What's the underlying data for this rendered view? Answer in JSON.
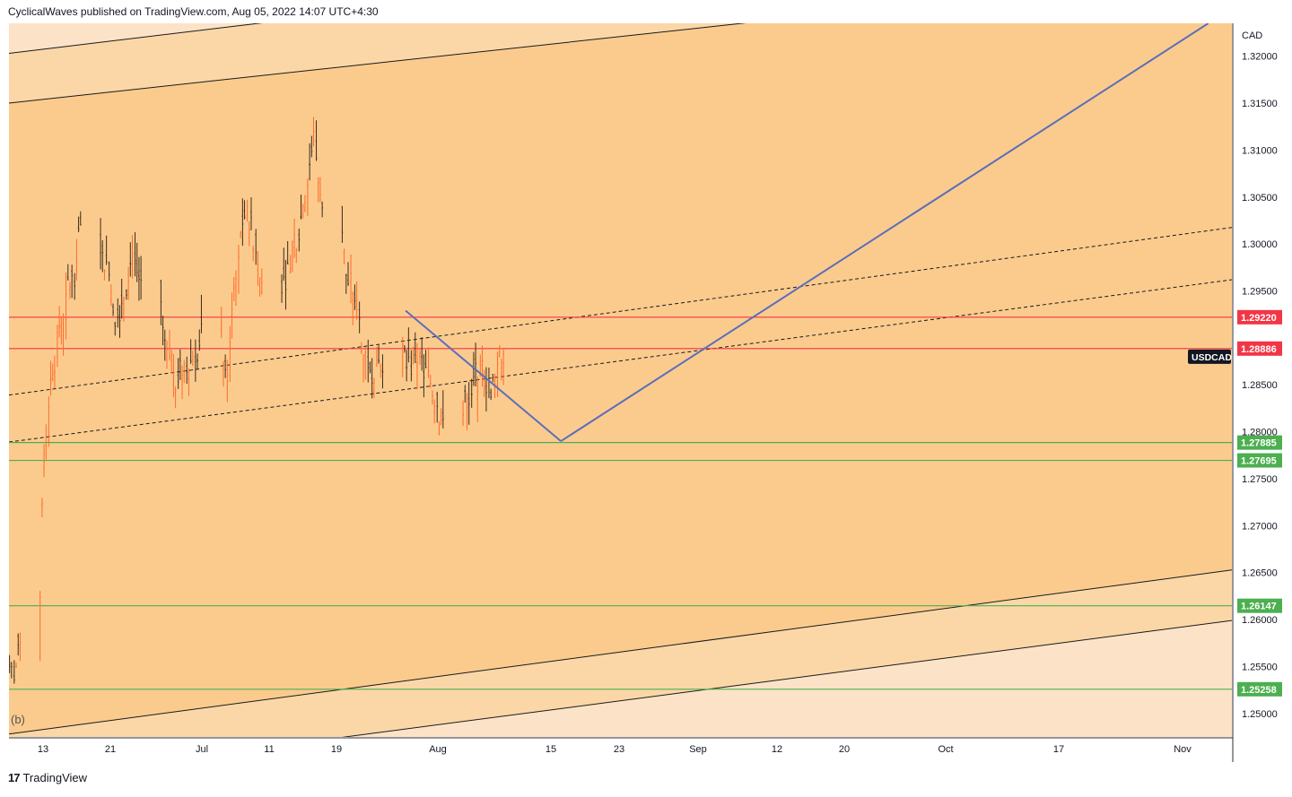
{
  "header": {
    "attribution": "CyclicalWaves published on TradingView.com, Aug 05, 2022 14:07 UTC+4:30"
  },
  "footer": {
    "brand": "TradingView",
    "logo_glyph": "17"
  },
  "chart_data": {
    "type": "candlestick",
    "symbol": "USDCAD",
    "currency": "CAD",
    "wave_label": "(b)",
    "ylim": [
      1.2475,
      1.3235
    ],
    "y_ticks": [
      "1.32000",
      "1.31500",
      "1.31000",
      "1.30500",
      "1.30000",
      "1.29500",
      "1.28500",
      "1.28000",
      "1.27500",
      "1.27000",
      "1.26500",
      "1.26000",
      "1.25500",
      "1.25000"
    ],
    "x_ticks": [
      "13",
      "21",
      "Jul",
      "11",
      "19",
      "Aug",
      "15",
      "23",
      "Sep",
      "12",
      "20",
      "Oct",
      "17",
      "Nov"
    ],
    "price_levels": [
      {
        "value": 1.2922,
        "label": "1.29220",
        "color": "#f23645"
      },
      {
        "value": 1.28886,
        "label": "1.28886",
        "color": "#f23645"
      },
      {
        "value": 1.27885,
        "label": "1.27885",
        "color": "#4caf50"
      },
      {
        "value": 1.27695,
        "label": "1.27695",
        "color": "#4caf50"
      },
      {
        "value": 1.26147,
        "label": "1.26147",
        "color": "#4caf50"
      },
      {
        "value": 1.25258,
        "label": "1.25258",
        "color": "#4caf50"
      }
    ],
    "current_price_tag": "USDCAD",
    "price_series_anchor_points": [
      [
        "Jun 09",
        1.254
      ],
      [
        "Jun 10",
        1.256
      ],
      [
        "Jun 13",
        1.279
      ],
      [
        "Jun 14",
        1.288
      ],
      [
        "Jun 15",
        1.292
      ],
      [
        "Jun 16",
        1.296
      ],
      [
        "Jun 17",
        1.301
      ],
      [
        "Jun 20",
        1.298
      ],
      [
        "Jun 21",
        1.293
      ],
      [
        "Jun 22",
        1.295
      ],
      [
        "Jun 23",
        1.299
      ],
      [
        "Jun 24",
        1.296
      ],
      [
        "Jun 27",
        1.288
      ],
      [
        "Jun 28",
        1.286
      ],
      [
        "Jun 29",
        1.287
      ],
      [
        "Jun 30",
        1.288
      ],
      [
        "Jul 01",
        1.291
      ],
      [
        "Jul 04",
        1.286
      ],
      [
        "Jul 05",
        1.296
      ],
      [
        "Jul 06",
        1.303
      ],
      [
        "Jul 07",
        1.301
      ],
      [
        "Jul 08",
        1.296
      ],
      [
        "Jul 11",
        1.297
      ],
      [
        "Jul 12",
        1.301
      ],
      [
        "Jul 13",
        1.305
      ],
      [
        "Jul 14",
        1.311
      ],
      [
        "Jul 15",
        1.304
      ],
      [
        "Jul 18",
        1.296
      ],
      [
        "Jul 19",
        1.293
      ],
      [
        "Jul 20",
        1.288
      ],
      [
        "Jul 21",
        1.287
      ],
      [
        "Jul 22",
        1.288
      ],
      [
        "Jul 25",
        1.287
      ],
      [
        "Jul 26",
        1.288
      ],
      [
        "Jul 27",
        1.286
      ],
      [
        "Jul 28",
        1.284
      ],
      [
        "Jul 29",
        1.281
      ],
      [
        "Aug 01",
        1.284
      ],
      [
        "Aug 02",
        1.286
      ],
      [
        "Aug 03",
        1.2855
      ],
      [
        "Aug 04",
        1.285
      ],
      [
        "Aug 05",
        1.288
      ]
    ],
    "trend_lines": [
      {
        "style": "solid",
        "color": "#5b6fb8",
        "points": [
          [
            "Jul 25",
            1.2929
          ],
          [
            "Aug 12",
            1.279
          ]
        ]
      },
      {
        "style": "solid",
        "color": "#5b6fb8",
        "points": [
          [
            "Aug 12",
            1.279
          ],
          [
            "Oct 26",
            1.3235
          ]
        ]
      }
    ],
    "channel_lines": [
      {
        "style": "solid",
        "points": [
          [
            "Jun 09",
            1.3203
          ],
          [
            "Sep 14",
            1.331
          ]
        ]
      },
      {
        "style": "solid",
        "points": [
          [
            "Jun 09",
            1.315
          ],
          [
            "Nov 06",
            1.33
          ]
        ]
      },
      {
        "style": "solid",
        "points": [
          [
            "Jun 09",
            1.2478
          ],
          [
            "Nov 06",
            1.2663
          ]
        ]
      },
      {
        "style": "solid",
        "points": [
          [
            "Jul 18",
            1.2475
          ],
          [
            "Nov 06",
            1.2609
          ]
        ]
      },
      {
        "style": "dashed",
        "points": [
          [
            "Jun 09",
            1.2839
          ],
          [
            "Nov 06",
            1.3028
          ]
        ]
      },
      {
        "style": "dashed",
        "points": [
          [
            "Jun 09",
            1.2789
          ],
          [
            "Nov 06",
            1.2972
          ]
        ]
      }
    ],
    "background": {
      "band_upper_color": "#fbd7a8",
      "band_fill_color": "#fbcb8e",
      "outer_color": "#fce3c7"
    }
  }
}
